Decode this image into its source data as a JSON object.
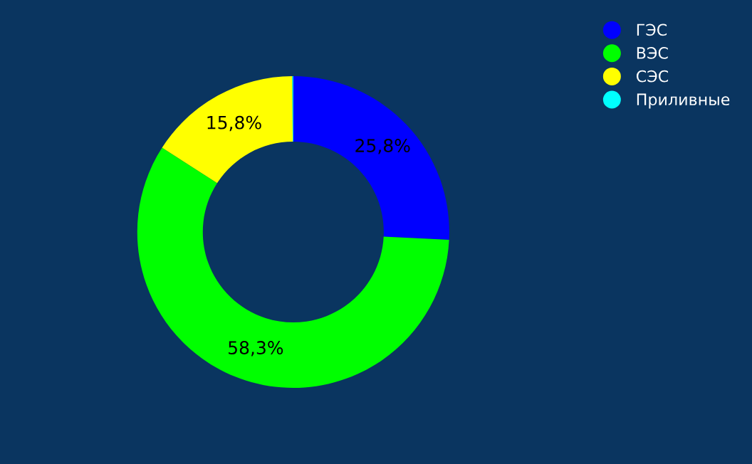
{
  "chart_data": {
    "type": "donut",
    "categories": [
      "ГЭС",
      "ВЭС",
      "СЭС",
      "Приливные"
    ],
    "values": [
      25.8,
      58.3,
      15.8,
      0.1
    ],
    "value_labels": [
      "25,8%",
      "58,3%",
      "15,8%",
      null
    ],
    "colors": [
      "#0000ff",
      "#00ff00",
      "#ffff00",
      "#00ffff"
    ],
    "legend": "top right"
  }
}
